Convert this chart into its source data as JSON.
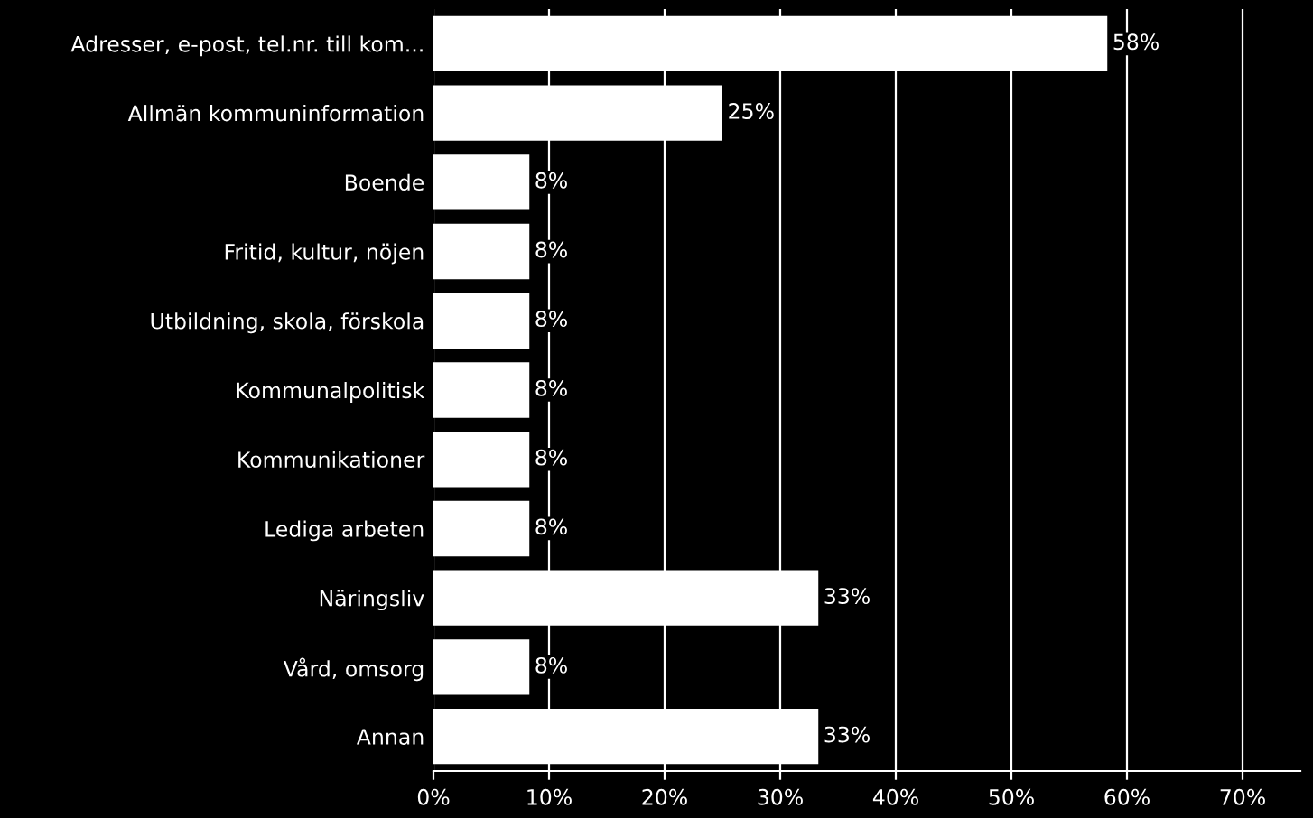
{
  "chart_data": {
    "type": "bar",
    "orientation": "horizontal",
    "categories": [
      "Adresser, e-post, tel.nr. till kom...",
      "Allmän kommuninformation",
      "Boende",
      "Fritid, kultur, nöjen",
      "Utbildning, skola, förskola",
      "Kommunalpolitisk",
      "Kommunikationer",
      "Lediga arbeten",
      "Näringsliv",
      "Vård, omsorg",
      "Annan"
    ],
    "values": [
      58.3,
      25,
      8.3,
      8.3,
      8.3,
      8.3,
      8.3,
      8.3,
      33.3,
      8.3,
      33.3
    ],
    "value_labels": [
      "58%",
      "25%",
      "8%",
      "8%",
      "8%",
      "8%",
      "8%",
      "8%",
      "33%",
      "8%",
      "33%"
    ],
    "color": "#ffffff",
    "xlim": [
      0,
      75
    ],
    "xticks": [
      {
        "value": 0,
        "label": "0%"
      },
      {
        "value": 10,
        "label": "10%"
      },
      {
        "value": 20,
        "label": "20%"
      },
      {
        "value": 30,
        "label": "30%"
      },
      {
        "value": 40,
        "label": "40%"
      },
      {
        "value": 50,
        "label": "50%"
      },
      {
        "value": 60,
        "label": "60%"
      },
      {
        "value": 70,
        "label": "70%"
      }
    ],
    "grid": "x",
    "legend": false
  }
}
